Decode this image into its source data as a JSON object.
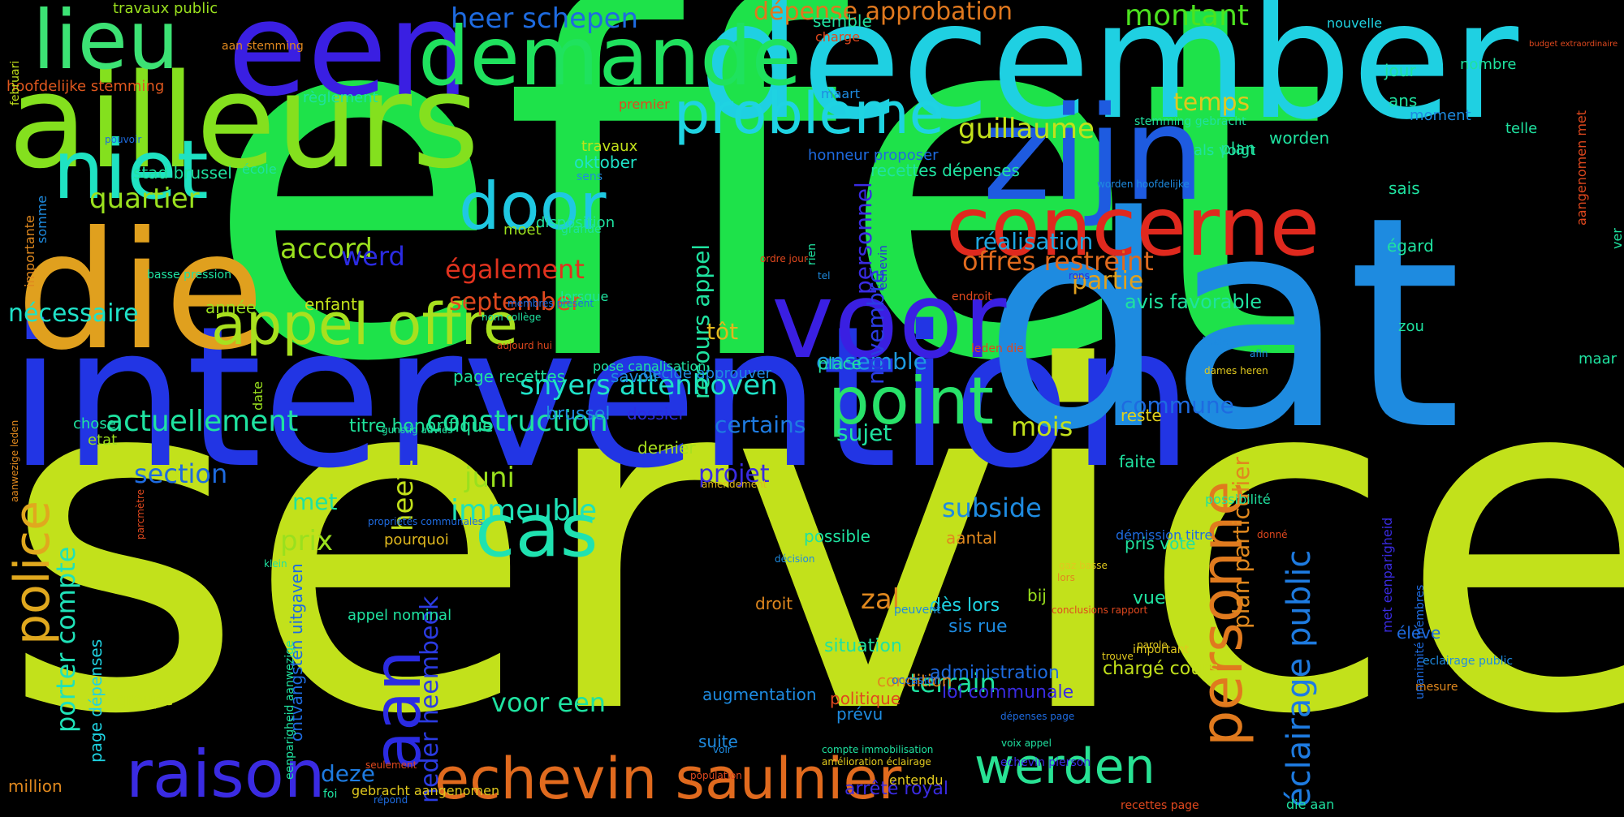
{
  "cloud": {
    "background": "#000000",
    "words": [
      {
        "text": "effet",
        "color": "#1EE24A"
      },
      {
        "text": "service",
        "color": "#C2E11B"
      },
      {
        "text": "intervention",
        "color": "#2235E4"
      },
      {
        "text": "dat",
        "color": "#1E8BE0"
      },
      {
        "text": "december",
        "color": "#1FD0E2"
      },
      {
        "text": "een",
        "color": "#3A1FE2"
      },
      {
        "text": "zijn",
        "color": "#1E5BE0"
      },
      {
        "text": "die",
        "color": "#E0A01E"
      },
      {
        "text": "ailleurs",
        "color": "#84E01E"
      },
      {
        "text": "voor",
        "color": "#3A1FE2"
      },
      {
        "text": "demande",
        "color": "#1FE25E"
      },
      {
        "text": "concerne",
        "color": "#E0291E"
      },
      {
        "text": "lieu",
        "color": "#3CE274"
      },
      {
        "text": "niet",
        "color": "#1FE2C2"
      },
      {
        "text": "echevin saulnier",
        "color": "#E06A1E"
      },
      {
        "text": "raison",
        "color": "#3A2BE2"
      },
      {
        "text": "appel offre",
        "color": "#A8E01E"
      },
      {
        "text": "point",
        "color": "#28E26A"
      },
      {
        "text": "cas",
        "color": "#1FE2B0"
      },
      {
        "text": "door",
        "color": "#1FC8E2"
      },
      {
        "text": "problème",
        "color": "#1FD3E2"
      },
      {
        "text": "werden",
        "color": "#28E294"
      },
      {
        "text": "personne",
        "color": "#E07A1E"
      },
      {
        "text": "police",
        "color": "#E0A81E"
      },
      {
        "text": "aan",
        "color": "#2B2BE2"
      },
      {
        "text": "éclairage public",
        "color": "#1E7BE0"
      },
      {
        "text": "actuellement",
        "color": "#1FE2A0"
      },
      {
        "text": "construction",
        "color": "#1FE2A0"
      },
      {
        "text": "immeuble",
        "color": "#1FE2B8"
      },
      {
        "text": "snyers attenhoven",
        "color": "#1FE2C8"
      },
      {
        "text": "offres restreint",
        "color": "#E06A1E"
      },
      {
        "text": "également",
        "color": "#E0321E"
      },
      {
        "text": "september",
        "color": "#E0481E"
      },
      {
        "text": "montant",
        "color": "#4CE21F"
      },
      {
        "text": "dépense approbation",
        "color": "#E0781E"
      },
      {
        "text": "heer schepen",
        "color": "#1E6BE0"
      },
      {
        "text": "guillaume",
        "color": "#C2E11B"
      },
      {
        "text": "quartier",
        "color": "#9AE01E"
      },
      {
        "text": "accord",
        "color": "#9AE01E"
      },
      {
        "text": "nécessaire",
        "color": "#1FE2C8"
      },
      {
        "text": "partie",
        "color": "#E0A01E"
      },
      {
        "text": "temps",
        "color": "#E0C81E"
      },
      {
        "text": "réalisation",
        "color": "#1FA8E2"
      },
      {
        "text": "section",
        "color": "#1E6BE0"
      },
      {
        "text": "porter compte",
        "color": "#1FE2B8"
      },
      {
        "text": "juni",
        "color": "#9AE01E"
      },
      {
        "text": "prix",
        "color": "#9AE01E"
      },
      {
        "text": "deze",
        "color": "#1E7BE0"
      },
      {
        "text": "neder heembeek",
        "color": "#2B3BE2"
      },
      {
        "text": "heeft",
        "color": "#C2E11B"
      },
      {
        "text": "voor een",
        "color": "#1FE2A0"
      },
      {
        "text": "subside",
        "color": "#1E8BE0"
      },
      {
        "text": "terrain",
        "color": "#1FE2A0"
      },
      {
        "text": "zal",
        "color": "#E0881E"
      },
      {
        "text": "projet",
        "color": "#3A2BE2"
      },
      {
        "text": "certains",
        "color": "#1E7BE0"
      },
      {
        "text": "sujet",
        "color": "#1FE2A0"
      },
      {
        "text": "mois",
        "color": "#C2E11B"
      },
      {
        "text": "commune",
        "color": "#1E6BE0"
      },
      {
        "text": "ensemble",
        "color": "#1E9BE0"
      },
      {
        "text": "werd",
        "color": "#2B2BE2"
      },
      {
        "text": "novembre",
        "color": "#2B3BE2"
      },
      {
        "text": "personnel",
        "color": "#3A2BE2"
      },
      {
        "text": "recours appel",
        "color": "#1FE2A0"
      },
      {
        "text": "plan particulier",
        "color": "#E0881E"
      },
      {
        "text": "met",
        "color": "#1FE2A0"
      },
      {
        "text": "tôt",
        "color": "#E0B81E"
      },
      {
        "text": "avis favorable",
        "color": "#1FE2A0"
      },
      {
        "text": "titre honorifique",
        "color": "#1FE29A"
      },
      {
        "text": "brussel",
        "color": "#1E8BE0"
      },
      {
        "text": "dossier",
        "color": "#2B2BE2"
      },
      {
        "text": "dernier",
        "color": "#A8E01E"
      },
      {
        "text": "savoir",
        "color": "#1E8BE0"
      },
      {
        "text": "reste",
        "color": "#E0D01E"
      },
      {
        "text": "faite",
        "color": "#1FE2A0"
      },
      {
        "text": "place",
        "color": "#1FE2A0"
      },
      {
        "text": "chargé cours",
        "color": "#C2E11B"
      },
      {
        "text": "situation",
        "color": "#1FE2A0"
      },
      {
        "text": "vue",
        "color": "#1FE2A0"
      },
      {
        "text": "administration",
        "color": "#1E6BE0"
      },
      {
        "text": "loi communale",
        "color": "#3A2BE2"
      },
      {
        "text": "dès lors",
        "color": "#1FD3E2"
      },
      {
        "text": "sis rue",
        "color": "#1E8BE0"
      },
      {
        "text": "condition",
        "color": "#E0881E"
      },
      {
        "text": "augmentation",
        "color": "#1E8BE0"
      },
      {
        "text": "politique",
        "color": "#E0481E"
      },
      {
        "text": "prévu",
        "color": "#1E8BE0"
      },
      {
        "text": "suite",
        "color": "#1E8BE0"
      },
      {
        "text": "arrêté royal",
        "color": "#3A2BE2"
      },
      {
        "text": "droit",
        "color": "#E0881E"
      },
      {
        "text": "bij",
        "color": "#9AE01E"
      },
      {
        "text": "aantal",
        "color": "#E0881E"
      },
      {
        "text": "pris vote",
        "color": "#1FE2A0"
      },
      {
        "text": "possible",
        "color": "#1FE2A0"
      },
      {
        "text": "pourquoi",
        "color": "#E0B81E"
      },
      {
        "text": "groupe",
        "color": "#C2E11B"
      },
      {
        "text": "million",
        "color": "#E0881E"
      },
      {
        "text": "page dépenses",
        "color": "#1FD3E2"
      },
      {
        "text": "ontvangsten uitgaven",
        "color": "#1E6BE0"
      },
      {
        "text": "appel nominal",
        "color": "#1FE2A0"
      },
      {
        "text": "enfant",
        "color": "#C2E11B"
      },
      {
        "text": "année",
        "color": "#9AE01E"
      },
      {
        "text": "chose",
        "color": "#1FE2A0"
      },
      {
        "text": "etat",
        "color": "#9AE01E"
      },
      {
        "text": "page recettes",
        "color": "#1FE2A0"
      },
      {
        "text": "moet",
        "color": "#9AE01E"
      },
      {
        "text": "lorsque",
        "color": "#1FE2A0"
      },
      {
        "text": "disposition",
        "color": "#1FE2A0"
      },
      {
        "text": "decide approuver",
        "color": "#1E8BE0"
      },
      {
        "text": "pose canalisation",
        "color": "#1FE2A0"
      },
      {
        "text": "stad brussel",
        "color": "#1FE2A0"
      },
      {
        "text": "oktober",
        "color": "#1FE2C8"
      },
      {
        "text": "travaux",
        "color": "#C2E11B"
      },
      {
        "text": "recettes dépenses",
        "color": "#1FE2A0"
      },
      {
        "text": "honneur proposer",
        "color": "#1E6BE0"
      },
      {
        "text": "plan",
        "color": "#1FE2A0"
      },
      {
        "text": "worden",
        "color": "#1FE2A0"
      },
      {
        "text": "als volgt",
        "color": "#1FE2A0"
      },
      {
        "text": "sais",
        "color": "#1FE2A0"
      },
      {
        "text": "égard",
        "color": "#1FE2A0"
      },
      {
        "text": "zou",
        "color": "#1FE2A0"
      },
      {
        "text": "maar",
        "color": "#1FE2A0"
      },
      {
        "text": "ans",
        "color": "#1FE2A0"
      },
      {
        "text": "jour",
        "color": "#1FE2A0"
      },
      {
        "text": "moment",
        "color": "#1E8BE0"
      },
      {
        "text": "nombre",
        "color": "#1FE2A0"
      },
      {
        "text": "telle",
        "color": "#1FE2A0"
      },
      {
        "text": "semble",
        "color": "#1FE2A0"
      },
      {
        "text": "charge",
        "color": "#E0481E"
      },
      {
        "text": "nouvelle",
        "color": "#1FD3E2"
      },
      {
        "text": "premier",
        "color": "#E0481E"
      },
      {
        "text": "maart",
        "color": "#1E8BE0"
      },
      {
        "text": "règlement",
        "color": "#1FE2A0"
      },
      {
        "text": "travaux public",
        "color": "#9AE01E"
      },
      {
        "text": "hoofdelijke stemming",
        "color": "#E0581E"
      },
      {
        "text": "aan stemming",
        "color": "#E0881E"
      },
      {
        "text": "februari",
        "color": "#C2E11B"
      },
      {
        "text": "pouvoir",
        "color": "#1E6BE0"
      },
      {
        "text": "école",
        "color": "#1FE2A0"
      },
      {
        "text": "sens",
        "color": "#1E8BE0"
      },
      {
        "text": "stemming gebracht",
        "color": "#1FE2A0"
      },
      {
        "text": "worden hoofdelijke",
        "color": "#1E8BE0"
      },
      {
        "text": "grande",
        "color": "#1FE2A0"
      },
      {
        "text": "ver",
        "color": "#1FE2A0"
      },
      {
        "text": "aangenomen met",
        "color": "#E0481E"
      },
      {
        "text": "budget extraordinaire",
        "color": "#E0481E"
      },
      {
        "text": "importante",
        "color": "#E0881E"
      },
      {
        "text": "somme",
        "color": "#1E8BE0"
      },
      {
        "text": "basse pression",
        "color": "#1FE2A0"
      },
      {
        "text": "membres présent",
        "color": "#1E6BE0"
      },
      {
        "text": "nom collège",
        "color": "#1FE2A0"
      },
      {
        "text": "endroit",
        "color": "#E0481E"
      },
      {
        "text": "tel",
        "color": "#1E8BE0"
      },
      {
        "text": "ordre jour",
        "color": "#E0481E"
      },
      {
        "text": "rien",
        "color": "#1FE2A0"
      },
      {
        "text": "échevin",
        "color": "#2B2BE2"
      },
      {
        "text": "rons",
        "color": "#2B2BE2"
      },
      {
        "text": "étude",
        "color": "#1E8BE0"
      },
      {
        "text": "afin",
        "color": "#1E8BE0"
      },
      {
        "text": "dames heren",
        "color": "#E0C81E"
      },
      {
        "text": "aujourd hui",
        "color": "#E0481E"
      },
      {
        "text": "leden die",
        "color": "#E0481E"
      },
      {
        "text": "date",
        "color": "#9AE01E"
      },
      {
        "text": "gunstig advies",
        "color": "#1FE2A0"
      },
      {
        "text": "aanwezige leden",
        "color": "#E0881E"
      },
      {
        "text": "parcmètre",
        "color": "#E0481E"
      },
      {
        "text": "propriétés communales",
        "color": "#1E6BE0"
      },
      {
        "text": "klein",
        "color": "#1FE2A0"
      },
      {
        "text": "amendement",
        "color": "#E0B81E"
      },
      {
        "text": "décision",
        "color": "#1E8BE0"
      },
      {
        "text": "possibilité",
        "color": "#1FE2A0"
      },
      {
        "text": "démission titre",
        "color": "#1E6BE0"
      },
      {
        "text": "donné",
        "color": "#E0481E"
      },
      {
        "text": "gaz basse",
        "color": "#E0C81E"
      },
      {
        "text": "lors",
        "color": "#E0881E"
      },
      {
        "text": "conclusions rapport",
        "color": "#E0481E"
      },
      {
        "text": "trouve",
        "color": "#E0C81E"
      },
      {
        "text": "parole",
        "color": "#E0C81E"
      },
      {
        "text": "important",
        "color": "#E0C81E"
      },
      {
        "text": "peuvent",
        "color": "#1E8BE0"
      },
      {
        "text": "occasion",
        "color": "#1E6BE0"
      },
      {
        "text": "dépenses page",
        "color": "#1E6BE0"
      },
      {
        "text": "voix appel",
        "color": "#1FE2A0"
      },
      {
        "text": "echevin pierson",
        "color": "#3A2BE2"
      },
      {
        "text": "voir",
        "color": "#1E8BE0"
      },
      {
        "text": "répond",
        "color": "#1E6BE0"
      },
      {
        "text": "seulement",
        "color": "#E0481E"
      },
      {
        "text": "eenparigheid aanwezige",
        "color": "#1FE2A0"
      },
      {
        "text": "entendu",
        "color": "#E0C81E"
      },
      {
        "text": "compte immobilisation",
        "color": "#1FE2A0"
      },
      {
        "text": "amélioration éclairage",
        "color": "#E0C81E"
      },
      {
        "text": "gebracht aangenomen",
        "color": "#E0C81E"
      },
      {
        "text": "population",
        "color": "#E0481E"
      },
      {
        "text": "foi",
        "color": "#1FE2A0"
      },
      {
        "text": "recettes page",
        "color": "#E0481E"
      },
      {
        "text": "die aan",
        "color": "#1FE2A0"
      },
      {
        "text": "mesure",
        "color": "#E0881E"
      },
      {
        "text": "élève",
        "color": "#1E6BE0"
      },
      {
        "text": "met eenparigheid",
        "color": "#3A2BE2"
      },
      {
        "text": "unanimité membres",
        "color": "#1E6BE0"
      },
      {
        "text": "eclairage public",
        "color": "#1E8BE0"
      }
    ]
  }
}
